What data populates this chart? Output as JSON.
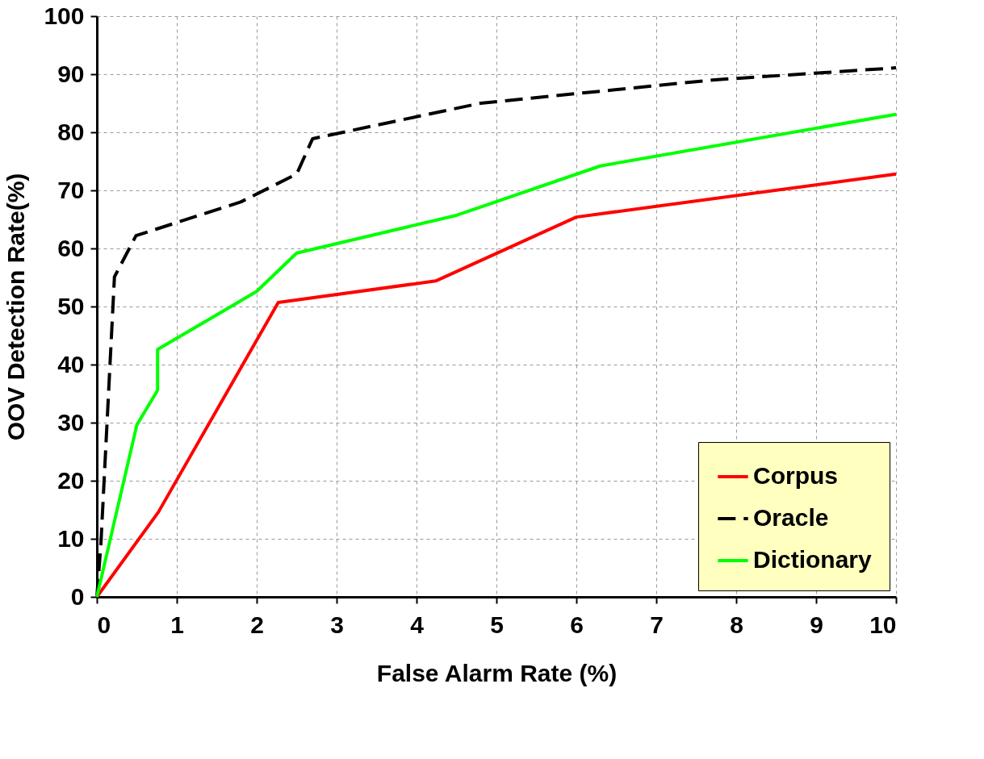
{
  "chart_data": {
    "type": "line",
    "xlabel": "False Alarm Rate (%)",
    "ylabel": "OOV Detection Rate(%)",
    "xlim": [
      0,
      10
    ],
    "xticks": [
      0,
      1,
      2,
      3,
      4,
      5,
      6,
      7,
      8,
      9,
      10
    ],
    "ylim": [
      0,
      100
    ],
    "yticks": [
      0,
      10,
      20,
      30,
      40,
      50,
      60,
      70,
      80,
      90,
      100
    ],
    "grid": true,
    "legend": "bottom right",
    "marker": "none",
    "series": [
      {
        "name": "Corpus",
        "color": "#ff0000",
        "line_style": "solid",
        "x": [
          0,
          0.77,
          2.27,
          4.24,
          6.0,
          10
        ],
        "values": [
          0,
          14.6,
          50.7,
          54.4,
          65.4,
          72.8
        ]
      },
      {
        "name": "Oracle",
        "color": "#000000",
        "line_style": "dashed",
        "x": [
          0,
          0.05,
          0.22,
          0.49,
          1.8,
          2.5,
          2.7,
          4.8,
          7.7,
          10
        ],
        "values": [
          0,
          9,
          55.1,
          62.2,
          68,
          72.8,
          78.9,
          85,
          89,
          91.1
        ]
      },
      {
        "name": "Dictionary",
        "color": "#00ff00",
        "line_style": "solid",
        "x": [
          0,
          0.5,
          0.76,
          0.76,
          2.0,
          2.5,
          4.5,
          6.3,
          10
        ],
        "values": [
          0,
          29.6,
          35.6,
          42.6,
          52.6,
          59.2,
          65.7,
          74.2,
          83.1
        ]
      }
    ]
  }
}
